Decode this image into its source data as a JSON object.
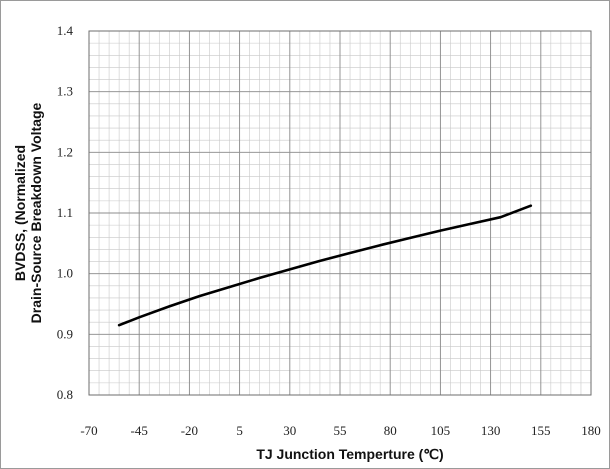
{
  "chart_data": {
    "type": "line",
    "title": "",
    "xlabel": "TJ Junction Temperture (℃)",
    "ylabel_lines": [
      "BVDSS, (Normalized",
      "Drain-Source Breakdown Voltage"
    ],
    "xlim": [
      -70,
      180
    ],
    "ylim": [
      0.8,
      1.4
    ],
    "x_ticks": [
      "-70",
      "-45",
      "-20",
      "5",
      "30",
      "55",
      "80",
      "105",
      "130",
      "155",
      "180"
    ],
    "y_ticks": [
      "0.8",
      "0.9",
      "1.0",
      "1.1",
      "1.2",
      "1.3",
      "1.4"
    ],
    "grid": true,
    "legend": "none",
    "series": [
      {
        "color": "#000000",
        "x": [
          -55,
          -45,
          -30,
          -15,
          0,
          15,
          30,
          45,
          60,
          75,
          90,
          105,
          120,
          135,
          150
        ],
        "y": [
          0.915,
          0.928,
          0.946,
          0.963,
          0.978,
          0.993,
          1.007,
          1.021,
          1.034,
          1.047,
          1.059,
          1.071,
          1.082,
          1.093,
          1.112
        ]
      }
    ]
  }
}
